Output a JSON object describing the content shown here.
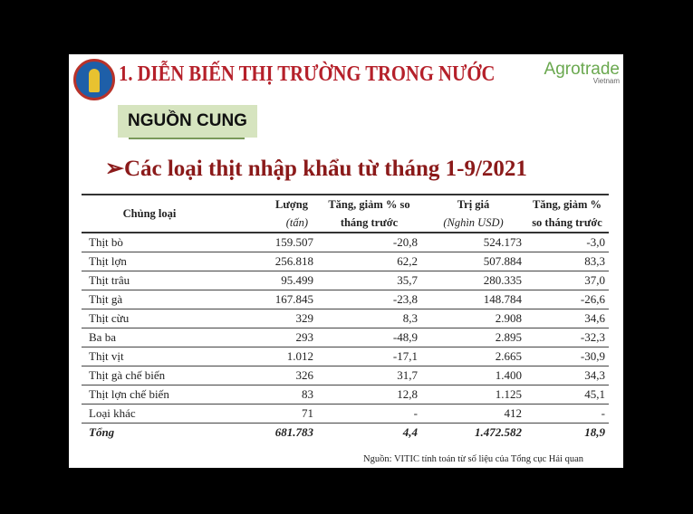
{
  "header": {
    "title": "1. DIỄN BIẾN THỊ TRƯỜNG TRONG NƯỚC",
    "brand": "Agrotrade",
    "brand_sub": "Vietnam"
  },
  "section": "NGUỒN CUNG",
  "subtitle": "➢Các loại thịt nhập khẩu từ tháng 1-9/2021",
  "table": {
    "headers": [
      "Chủng loại",
      "Lượng",
      "(tấn)",
      "Tăng, giảm % so",
      "tháng trước",
      "Trị giá",
      "(Nghìn USD)",
      "Tăng, giảm %",
      "so tháng trước"
    ],
    "rows": [
      [
        "Thịt bò",
        "159.507",
        "-20,8",
        "524.173",
        "-3,0"
      ],
      [
        "Thịt lợn",
        "256.818",
        "62,2",
        "507.884",
        "83,3"
      ],
      [
        "Thịt trâu",
        "95.499",
        "35,7",
        "280.335",
        "37,0"
      ],
      [
        "Thịt gà",
        "167.845",
        "-23,8",
        "148.784",
        "-26,6"
      ],
      [
        "Thịt cừu",
        "329",
        "8,3",
        "2.908",
        "34,6"
      ],
      [
        "Ba ba",
        "293",
        "-48,9",
        "2.895",
        "-32,3"
      ],
      [
        "Thịt vịt",
        "1.012",
        "-17,1",
        "2.665",
        "-30,9"
      ],
      [
        "Thịt gà chế biến",
        "326",
        "31,7",
        "1.400",
        "34,3"
      ],
      [
        "Thịt lợn chế biến",
        "83",
        "12,8",
        "1.125",
        "45,1"
      ],
      [
        "Loại khác",
        "71",
        "-",
        "412",
        "-"
      ]
    ],
    "total": [
      "Tổng",
      "681.783",
      "4,4",
      "1.472.582",
      "18,9"
    ]
  },
  "source": "Nguồn: VITIC tính toán từ số liệu của Tổng cục Hải quan"
}
